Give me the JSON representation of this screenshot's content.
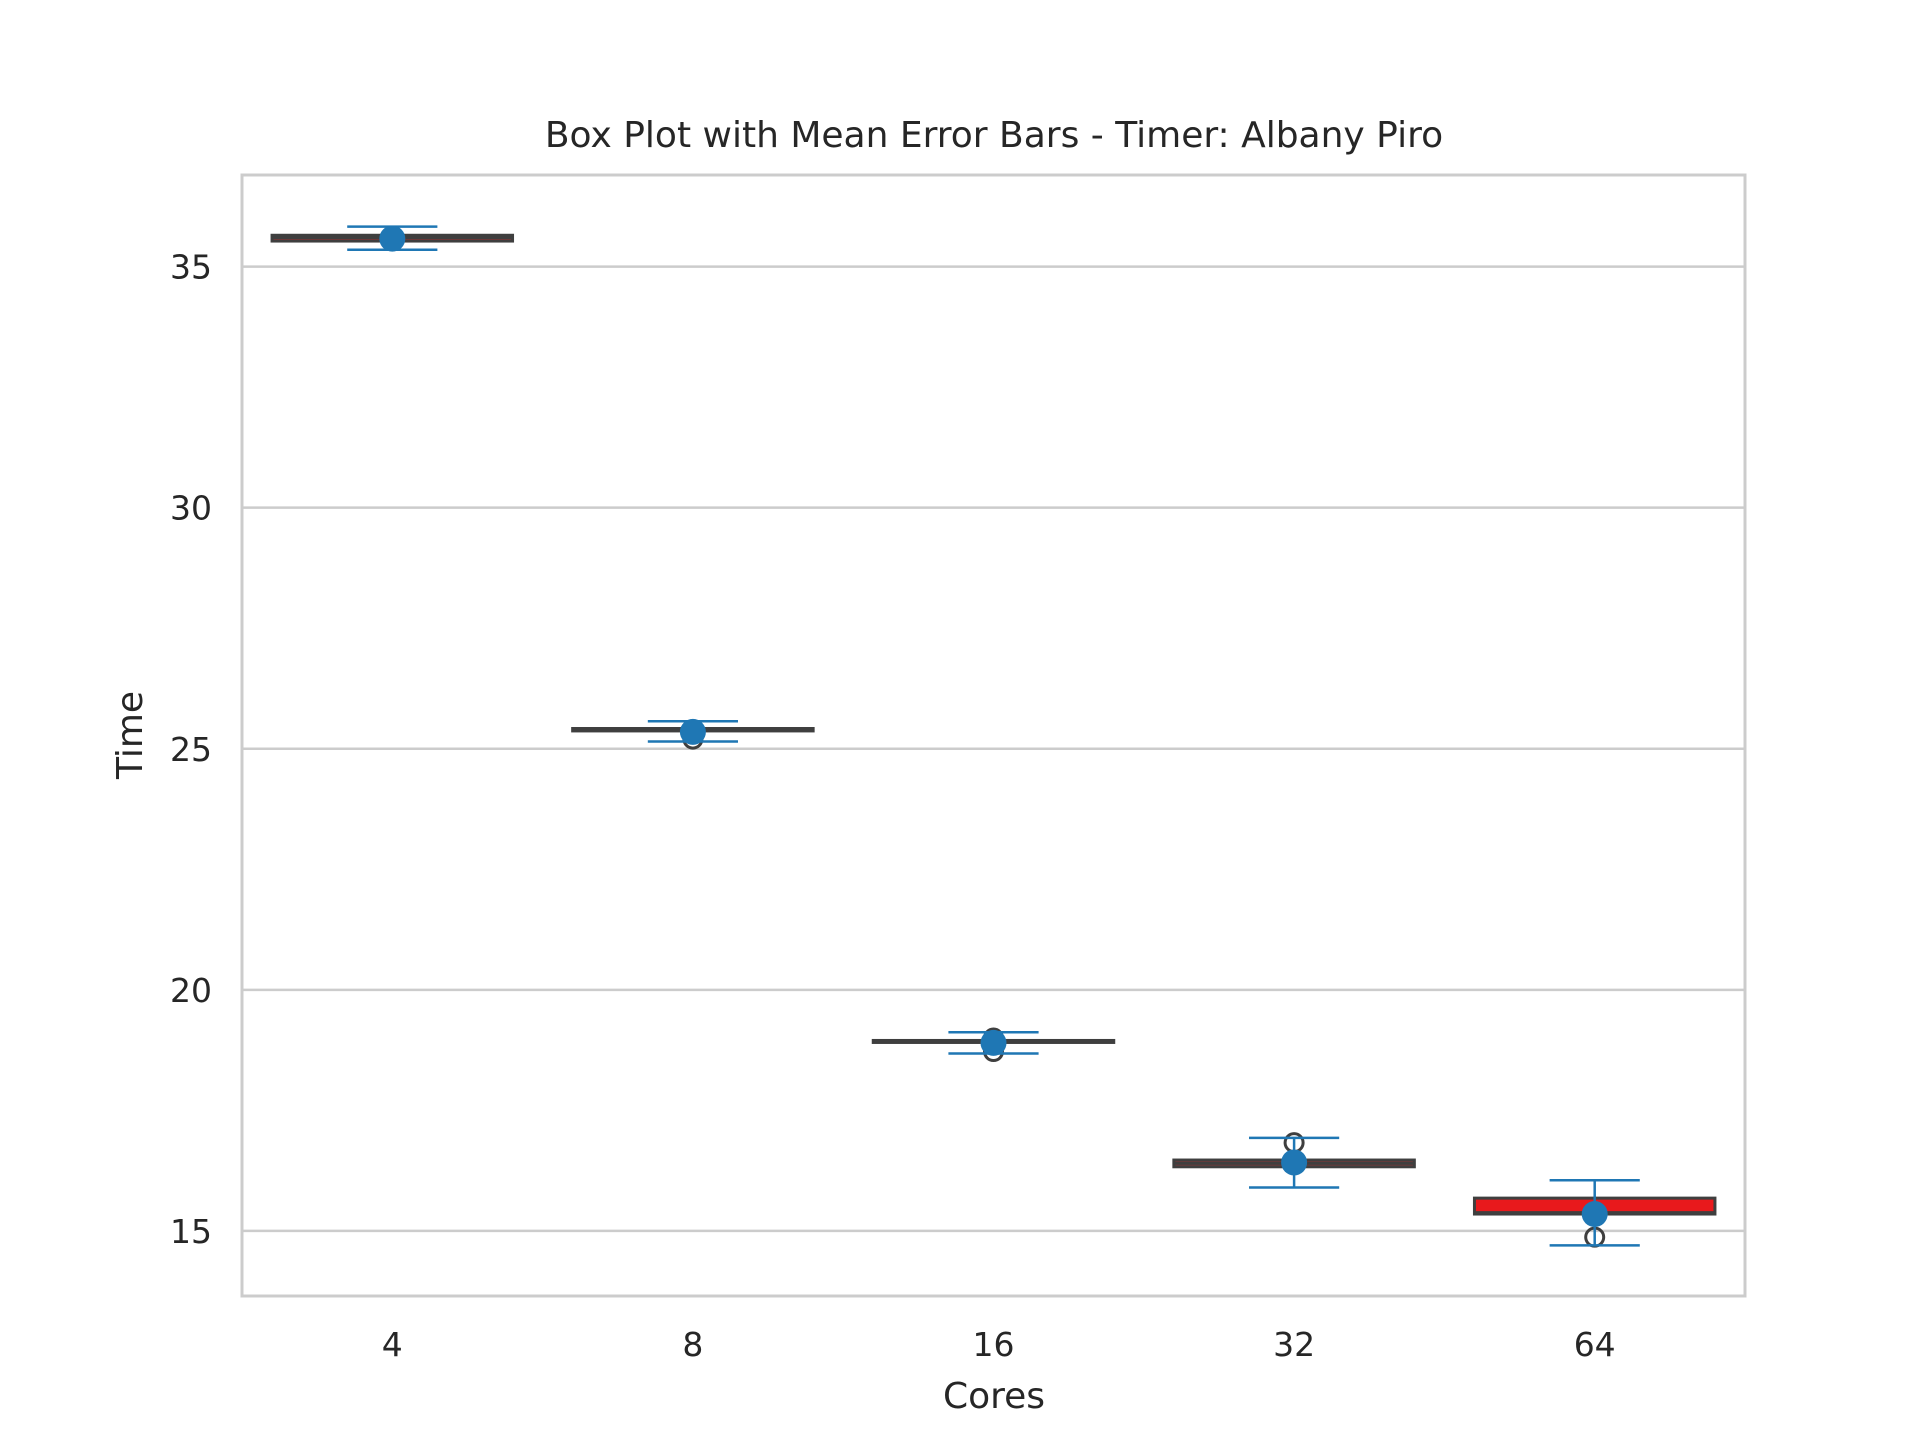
{
  "chart_data": {
    "type": "box",
    "title": "Box Plot with Mean Error Bars - Timer: Albany Piro",
    "xlabel": "Cores",
    "ylabel": "Time",
    "categories": [
      "4",
      "8",
      "16",
      "32",
      "64"
    ],
    "ylim": [
      13.65,
      36.9
    ],
    "yticks": [
      15,
      20,
      25,
      30,
      35
    ],
    "grid": true,
    "boxes": [
      {
        "category": "4",
        "q1": 35.53,
        "median": 35.6,
        "q3": 35.65,
        "whisker_low": 35.53,
        "whisker_high": 35.65,
        "outliers": [],
        "box_color": "#a83232"
      },
      {
        "category": "8",
        "q1": 25.37,
        "median": 25.39,
        "q3": 25.42,
        "whisker_low": 25.37,
        "whisker_high": 25.42,
        "outliers": [
          25.2
        ],
        "box_color": "#6e5050"
      },
      {
        "category": "16",
        "q1": 18.92,
        "median": 18.93,
        "q3": 18.95,
        "whisker_low": 18.92,
        "whisker_high": 18.95,
        "outliers": [
          18.72,
          19.0
        ],
        "box_color": "#5a5a5a"
      },
      {
        "category": "32",
        "q1": 16.33,
        "median": 16.4,
        "q3": 16.47,
        "whisker_low": 16.33,
        "whisker_high": 16.47,
        "outliers": [
          16.83
        ],
        "box_color": "#a83232"
      },
      {
        "category": "64",
        "q1": 15.35,
        "median": 15.38,
        "q3": 15.68,
        "whisker_low": 15.35,
        "whisker_high": 15.68,
        "outliers": [
          14.87
        ],
        "box_color": "#e8191c"
      }
    ],
    "means": [
      {
        "category": "4",
        "mean": 35.58,
        "err_low": 35.35,
        "err_high": 35.83
      },
      {
        "category": "8",
        "mean": 25.35,
        "err_low": 25.15,
        "err_high": 25.57
      },
      {
        "category": "16",
        "mean": 18.9,
        "err_low": 18.68,
        "err_high": 19.12
      },
      {
        "category": "32",
        "mean": 16.42,
        "err_low": 15.9,
        "err_high": 16.93
      },
      {
        "category": "64",
        "mean": 15.35,
        "err_low": 14.7,
        "err_high": 16.05
      }
    ],
    "colors": {
      "mean_marker": "#1f77b4",
      "error_bar": "#1f77b4",
      "box_edge": "#3f3f3f",
      "outlier_edge": "#3f3f3f",
      "grid": "#cccccc",
      "spine": "#cccccc",
      "text": "#262626"
    }
  }
}
